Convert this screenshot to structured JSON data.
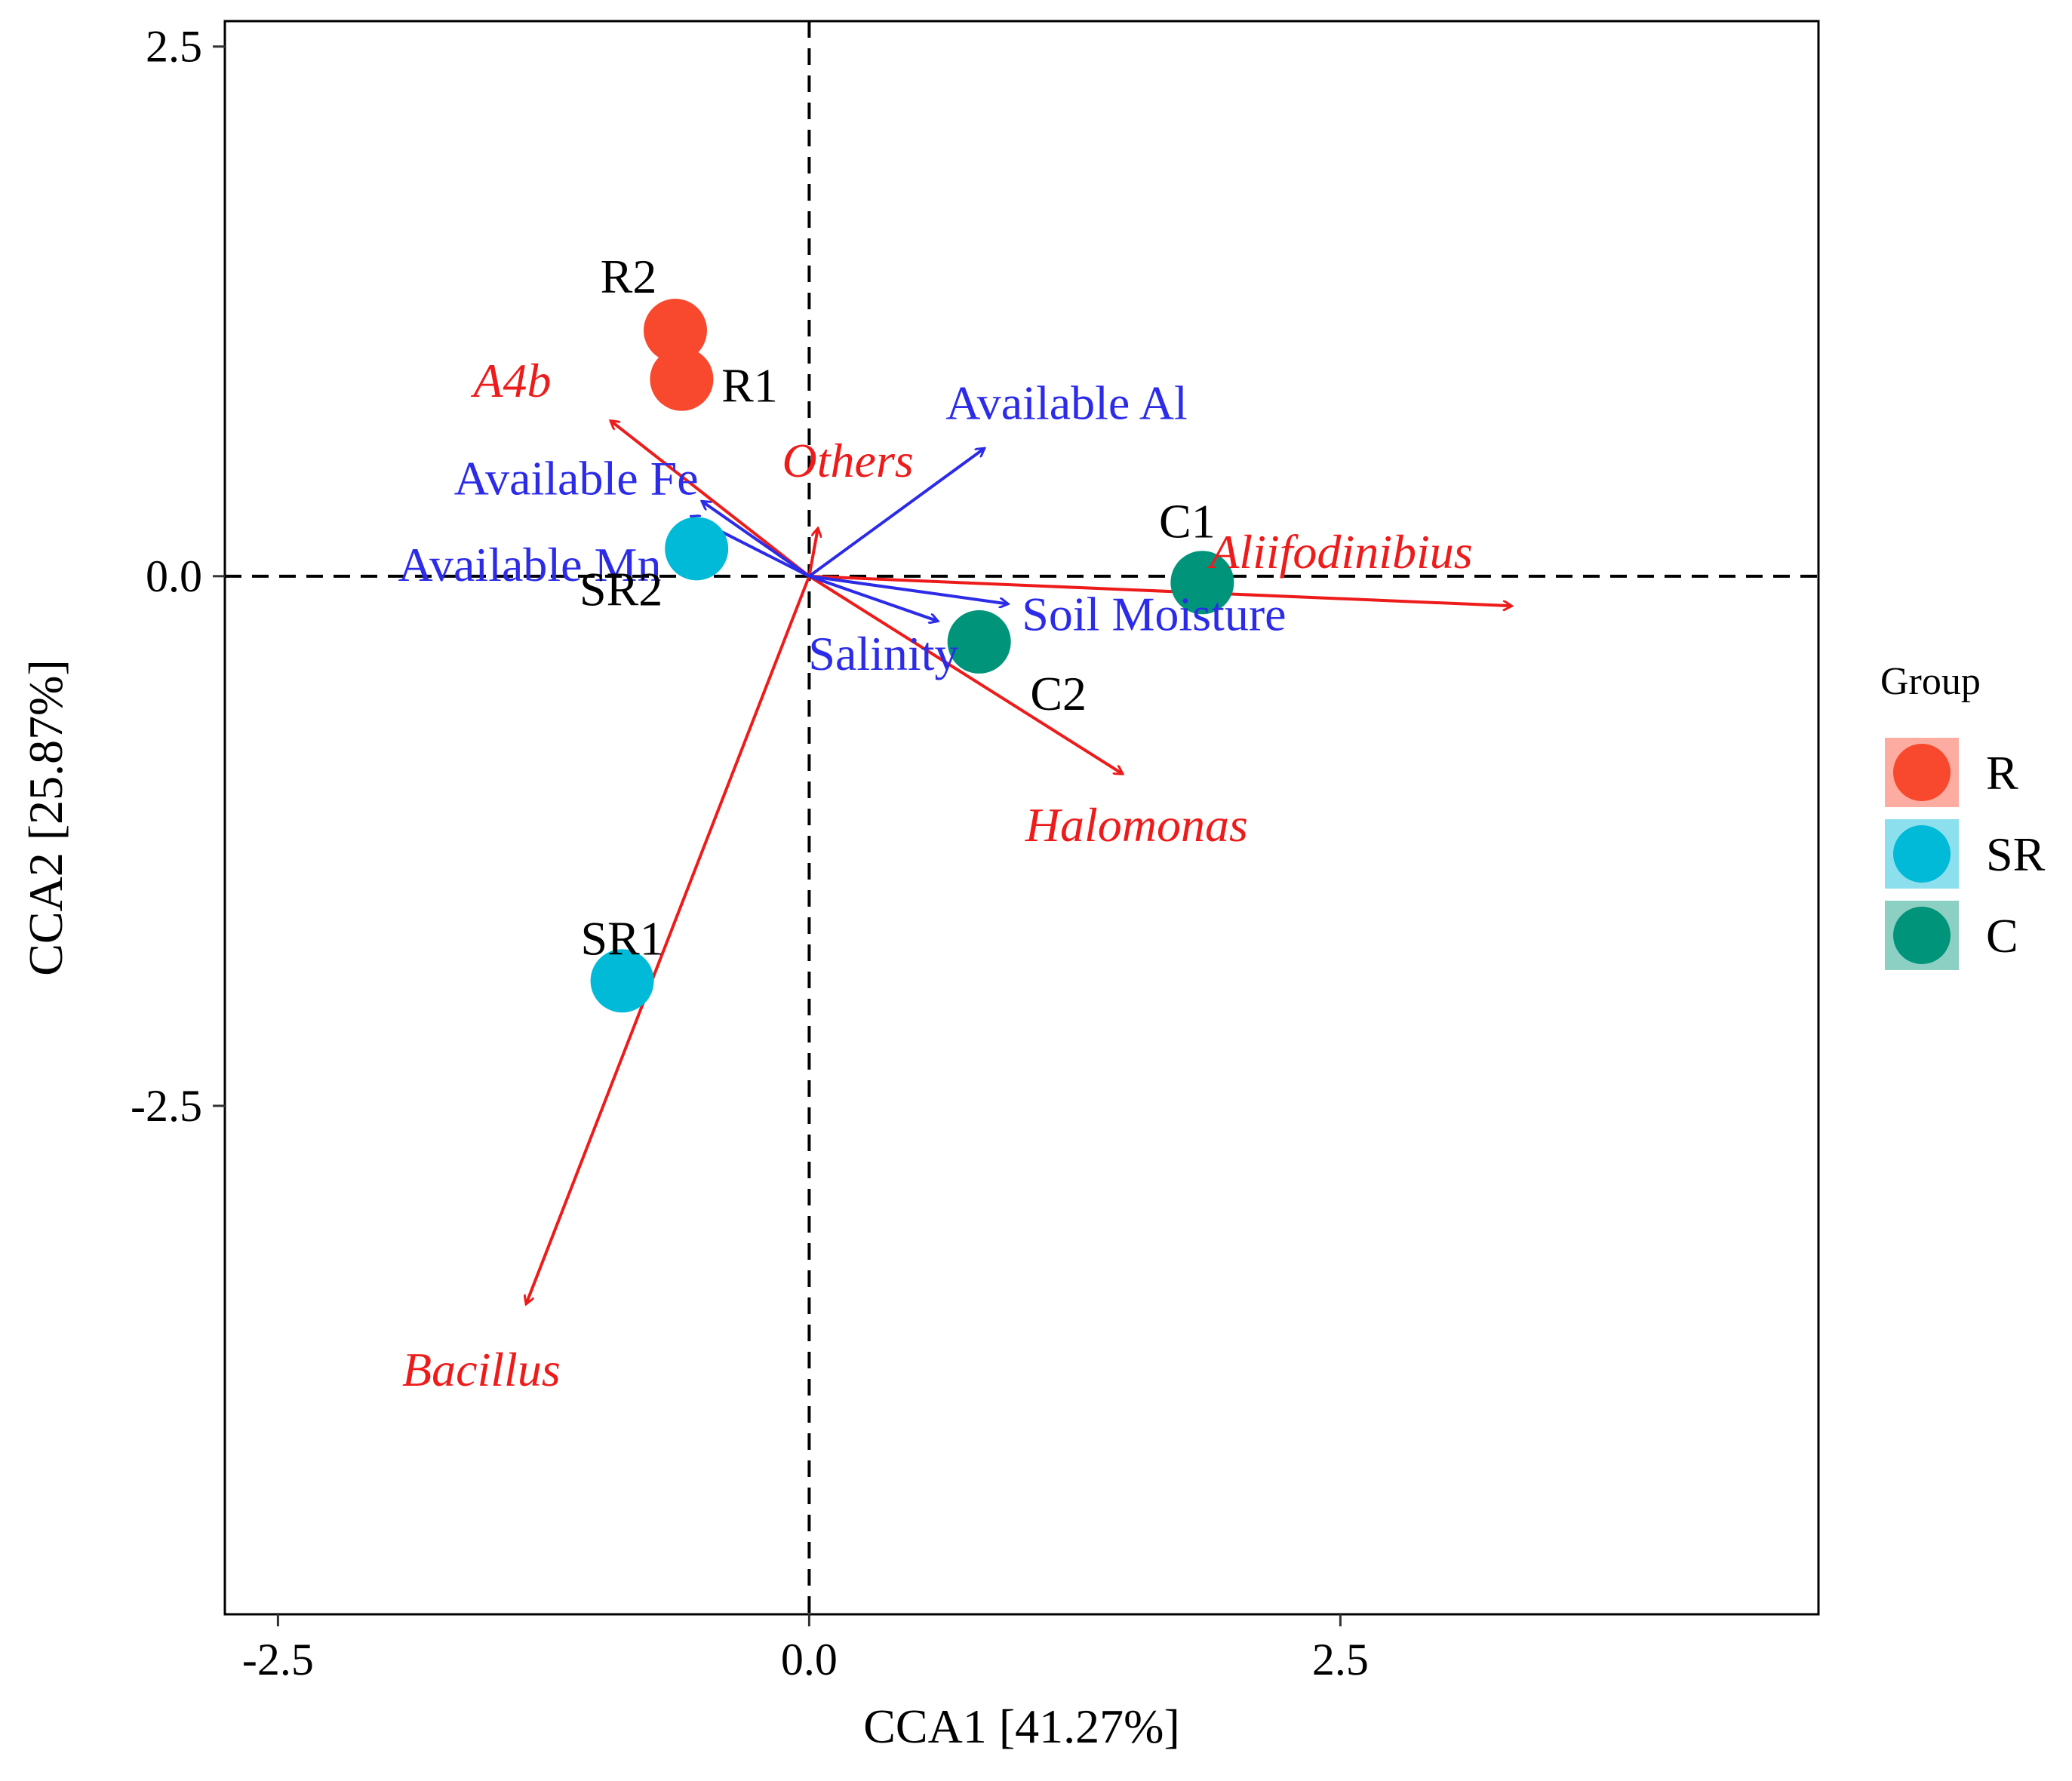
{
  "chart_data": {
    "type": "scatter",
    "xlabel": "CCA1 [41.27%]",
    "ylabel": "CCA2 [25.87%]",
    "xlim": [
      -2.75,
      4.75
    ],
    "ylim": [
      -4.9,
      2.62
    ],
    "x_ticks": [
      {
        "value": -2.5,
        "label": "-2.5"
      },
      {
        "value": 0.0,
        "label": "0.0"
      },
      {
        "value": 2.5,
        "label": "2.5"
      }
    ],
    "y_ticks": [
      {
        "value": 2.5,
        "label": "2.5"
      },
      {
        "value": 0.0,
        "label": "0.0"
      },
      {
        "value": -2.5,
        "label": "-2.5"
      }
    ],
    "grid": false,
    "reference_lines": {
      "x": 0,
      "y": 0,
      "style": "dashed"
    },
    "legend": {
      "title": "Group",
      "position": "right",
      "entries": [
        {
          "label": "R",
          "color": "#F8482D"
        },
        {
          "label": "SR",
          "color": "#00BAD8"
        },
        {
          "label": "C",
          "color": "#00947A"
        }
      ]
    },
    "samples": [
      {
        "label": "R2",
        "group": "R",
        "x": -0.63,
        "y": 1.16
      },
      {
        "label": "R1",
        "group": "R",
        "x": -0.6,
        "y": 0.93
      },
      {
        "label": "SR2",
        "group": "SR",
        "x": -0.53,
        "y": 0.13
      },
      {
        "label": "SR1",
        "group": "SR",
        "x": -0.88,
        "y": -1.91
      },
      {
        "label": "C1",
        "group": "C",
        "x": 1.85,
        "y": -0.03
      },
      {
        "label": "C2",
        "group": "C",
        "x": 0.8,
        "y": -0.31
      }
    ],
    "environmental_vectors": {
      "color": "#2B2BE8",
      "items": [
        {
          "label": "Available Al",
          "x": 0.82,
          "y": 0.6
        },
        {
          "label": "Available Fe",
          "x": -0.5,
          "y": 0.35
        },
        {
          "label": "Available Mn",
          "x": -0.55,
          "y": 0.28
        },
        {
          "label": "Soil Moisture",
          "x": 0.93,
          "y": -0.13
        },
        {
          "label": "Salinity",
          "x": 0.6,
          "y": -0.21
        }
      ]
    },
    "species_vectors": {
      "color": "#EE1B1B",
      "items": [
        {
          "label": "A4b",
          "x": -0.93,
          "y": 0.73
        },
        {
          "label": "Others",
          "x": 0.04,
          "y": 0.22
        },
        {
          "label": "Aliifodinibius",
          "x": 3.3,
          "y": -0.14
        },
        {
          "label": "Halomonas",
          "x": 1.47,
          "y": -0.93
        },
        {
          "label": "Bacillus",
          "x": -1.33,
          "y": -3.43
        }
      ]
    }
  }
}
